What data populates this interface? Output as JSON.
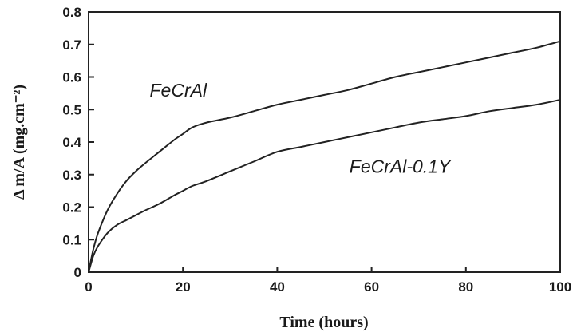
{
  "chart_data": {
    "type": "line",
    "title": "",
    "xlabel": "Time (hours)",
    "ylabel": "Δ m/A (mg.cm⁻²)",
    "xlim": [
      0,
      100
    ],
    "ylim": [
      0,
      0.8
    ],
    "xticks": [
      0,
      20,
      40,
      60,
      80,
      100
    ],
    "xtick_labels": [
      "0",
      "20",
      "40",
      "60",
      "80",
      "100"
    ],
    "yticks": [
      0,
      0.1,
      0.2,
      0.3,
      0.4,
      0.5,
      0.6,
      0.7,
      0.8
    ],
    "ytick_labels": [
      "0",
      "0.1",
      "0.2",
      "0.3",
      "0.4",
      "0.5",
      "0.6",
      "0.7",
      "0.8"
    ],
    "grid": false,
    "legend": "none",
    "series": [
      {
        "name": "FeCrAl",
        "color": "#222222",
        "x": [
          0,
          1,
          2,
          4,
          6,
          8,
          10,
          12,
          15,
          18,
          20,
          22,
          25,
          30,
          35,
          40,
          45,
          50,
          55,
          60,
          65,
          70,
          75,
          80,
          85,
          90,
          95,
          100
        ],
        "y": [
          0,
          0.07,
          0.12,
          0.19,
          0.24,
          0.28,
          0.31,
          0.335,
          0.37,
          0.405,
          0.425,
          0.445,
          0.46,
          0.475,
          0.495,
          0.515,
          0.53,
          0.545,
          0.56,
          0.58,
          0.6,
          0.615,
          0.63,
          0.645,
          0.66,
          0.675,
          0.69,
          0.71
        ]
      },
      {
        "name": "FeCrAl-0.1Y",
        "color": "#222222",
        "x": [
          0,
          1,
          2,
          4,
          6,
          8,
          10,
          12,
          15,
          18,
          20,
          22,
          25,
          30,
          35,
          40,
          45,
          50,
          55,
          60,
          65,
          70,
          75,
          80,
          85,
          90,
          95,
          100
        ],
        "y": [
          0,
          0.05,
          0.08,
          0.12,
          0.145,
          0.16,
          0.175,
          0.19,
          0.21,
          0.235,
          0.25,
          0.265,
          0.28,
          0.31,
          0.34,
          0.37,
          0.385,
          0.4,
          0.415,
          0.43,
          0.445,
          0.46,
          0.47,
          0.48,
          0.495,
          0.505,
          0.515,
          0.53
        ]
      }
    ],
    "annotations": [
      {
        "text": "FeCrAl",
        "series": 0,
        "x": 19,
        "y": 0.54
      },
      {
        "text": "FeCrAl-0.1Y",
        "series": 1,
        "x": 66,
        "y": 0.305
      }
    ]
  }
}
